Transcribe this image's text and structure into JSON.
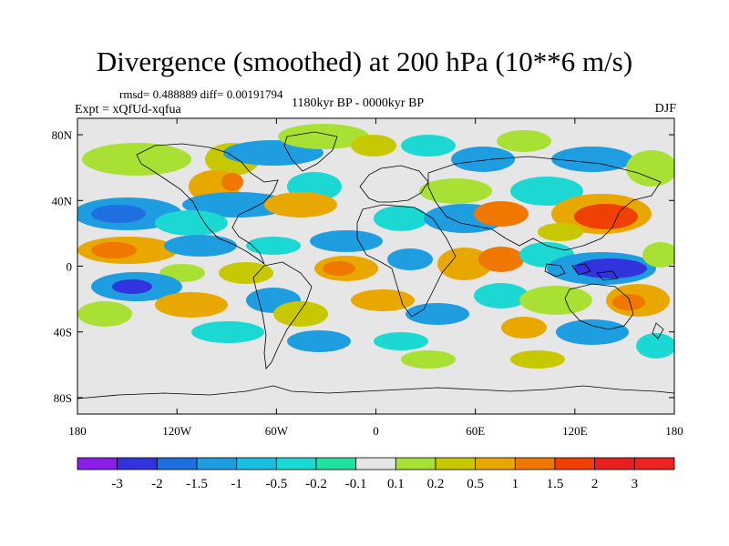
{
  "title": "Divergence (smoothed) at 200 hPa (10**6 m/s)",
  "stats": "rmsd= 0.488889 diff= 0.00191794",
  "period": "1180kyr BP - 0000kyr BP",
  "experiment": "Expt = xQfUd-xqfua",
  "season": "DJF",
  "lat_ticks": [
    "80N",
    "40N",
    "0",
    "40S",
    "80S"
  ],
  "lon_ticks": [
    "180",
    "120W",
    "60W",
    "0",
    "60E",
    "120E",
    "180"
  ],
  "colorbar": {
    "labels": [
      "-3",
      "-2",
      "-1.5",
      "-1",
      "-0.5",
      "-0.2",
      "-0.1",
      "0.1",
      "0.2",
      "0.5",
      "1",
      "1.5",
      "2",
      "3"
    ],
    "colors": [
      "#8a1ee8",
      "#3333dd",
      "#1f6fe0",
      "#1e9de0",
      "#18bfe0",
      "#1cd8d2",
      "#22e0a0",
      "#e6e6e6",
      "#a8e034",
      "#c8c800",
      "#e8a800",
      "#f07800",
      "#f04000",
      "#e82020"
    ]
  },
  "map_colors": {
    "ocean_bg": "#e6e6e6",
    "coast": "#000000"
  }
}
